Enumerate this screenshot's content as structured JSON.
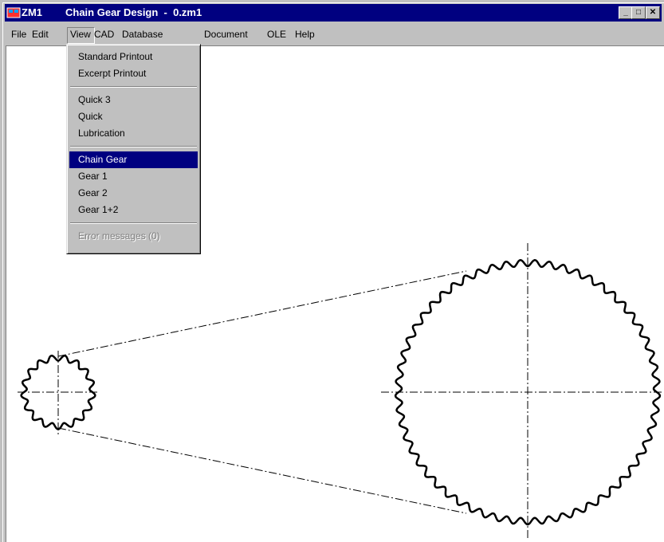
{
  "window": {
    "app_label": "ZM1",
    "title": "Chain Gear Design  -  0.zm1"
  },
  "menu": [
    "File",
    "Edit",
    "View",
    "CAD",
    "Database",
    "Document",
    "OLE",
    "Help"
  ],
  "dropdown": {
    "groups": [
      [
        "Standard Printout",
        "Excerpt Printout"
      ],
      [
        "Quick 3",
        "Quick",
        "Lubrication"
      ],
      [
        "Chain Gear",
        "Gear 1",
        "Gear 2",
        "Gear 1+2"
      ],
      [
        "Error messages (0)"
      ]
    ]
  }
}
